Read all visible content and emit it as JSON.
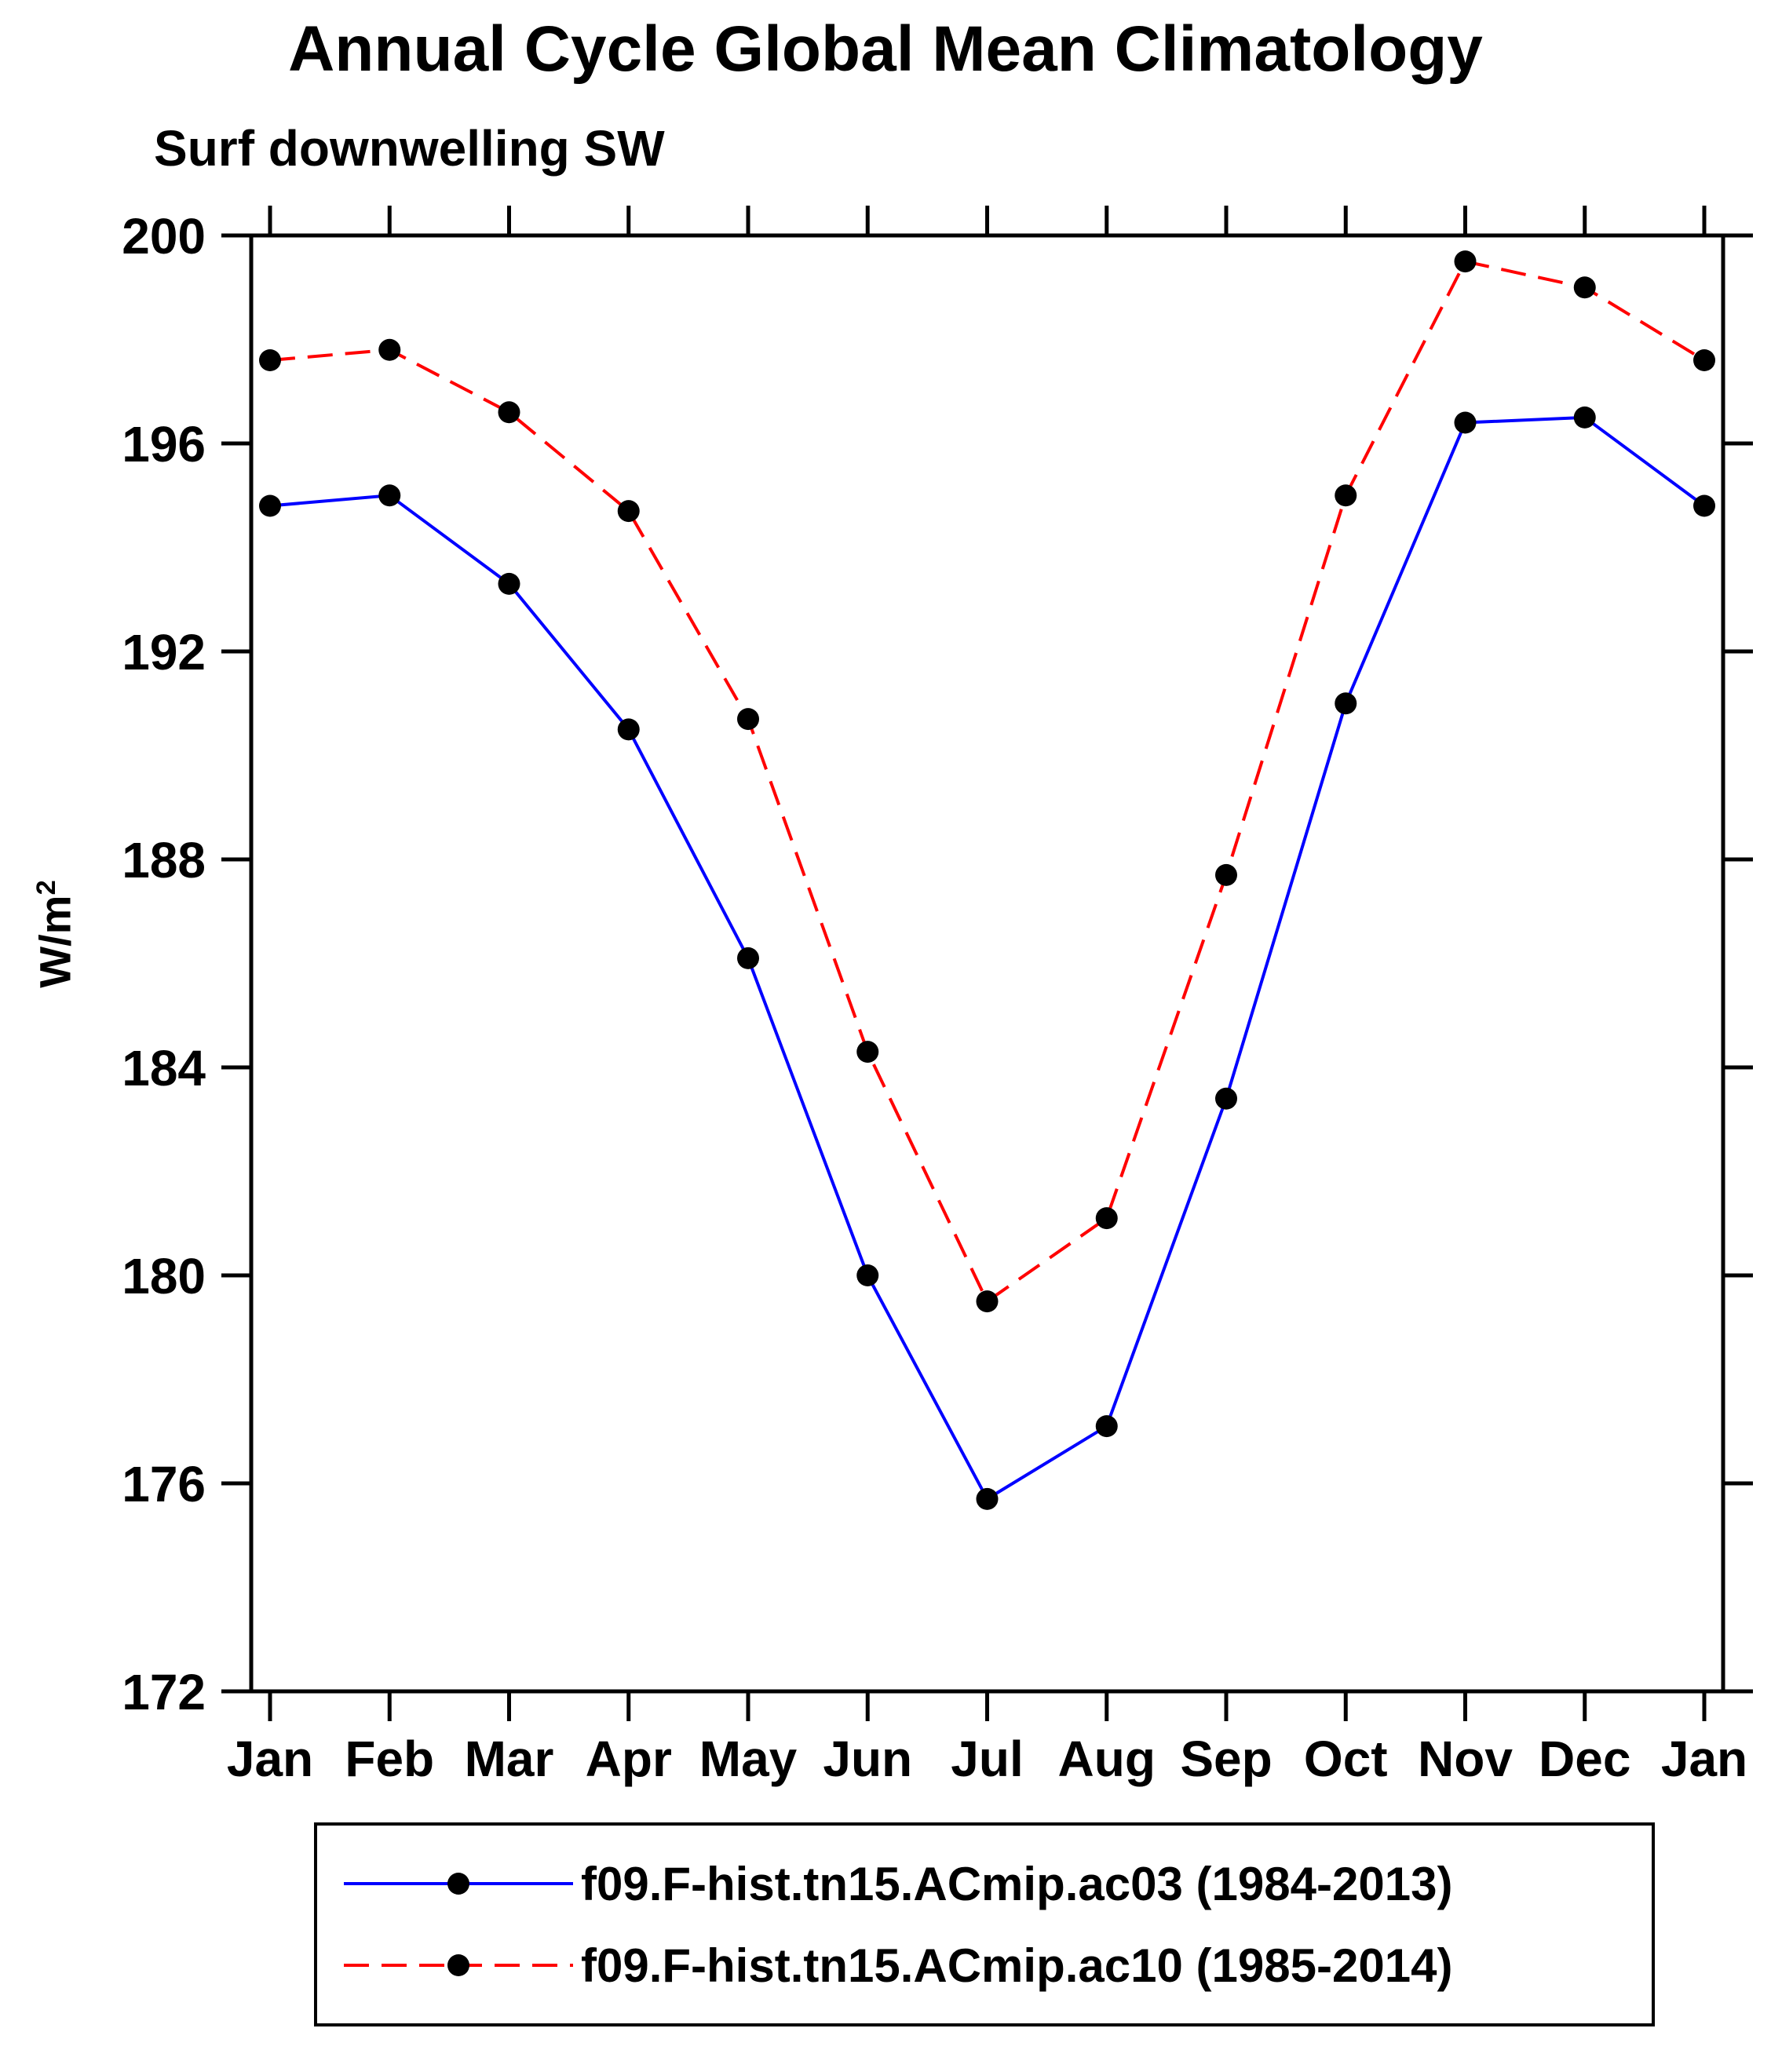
{
  "title": "Annual Cycle Global Mean Climatology",
  "subtitle": "Surf downwelling SW",
  "ylabel": {
    "base": "W/m",
    "sup": "2"
  },
  "colors": {
    "axis": "#000000",
    "marker": "#000000",
    "series1": "#0000ff",
    "series2": "#ff0000"
  },
  "chart_data": {
    "type": "line",
    "categories": [
      "Jan",
      "Feb",
      "Mar",
      "Apr",
      "May",
      "Jun",
      "Jul",
      "Aug",
      "Sep",
      "Oct",
      "Nov",
      "Dec",
      "Jan"
    ],
    "ylim": [
      172,
      200
    ],
    "ytick_step": 4,
    "yticks": [
      172,
      176,
      180,
      184,
      188,
      192,
      196,
      200
    ],
    "grid": false,
    "legend_position": "bottom",
    "marker": "filled-circle",
    "marker_color": "#000000",
    "series": [
      {
        "name": "f09.F-hist.tn15.ACmip.ac03 (1984-2013)",
        "color": "#0000ff",
        "style": "solid",
        "values": [
          194.8,
          195.0,
          193.3,
          190.5,
          186.1,
          180.0,
          175.7,
          177.1,
          183.4,
          191.0,
          196.4,
          196.5,
          194.8
        ]
      },
      {
        "name": "f09.F-hist.tn15.ACmip.ac10 (1985-2014)",
        "color": "#ff0000",
        "style": "dashed",
        "values": [
          197.6,
          197.8,
          196.6,
          194.7,
          190.7,
          184.3,
          179.5,
          181.1,
          187.7,
          195.0,
          199.5,
          199.0,
          197.6
        ]
      }
    ]
  }
}
